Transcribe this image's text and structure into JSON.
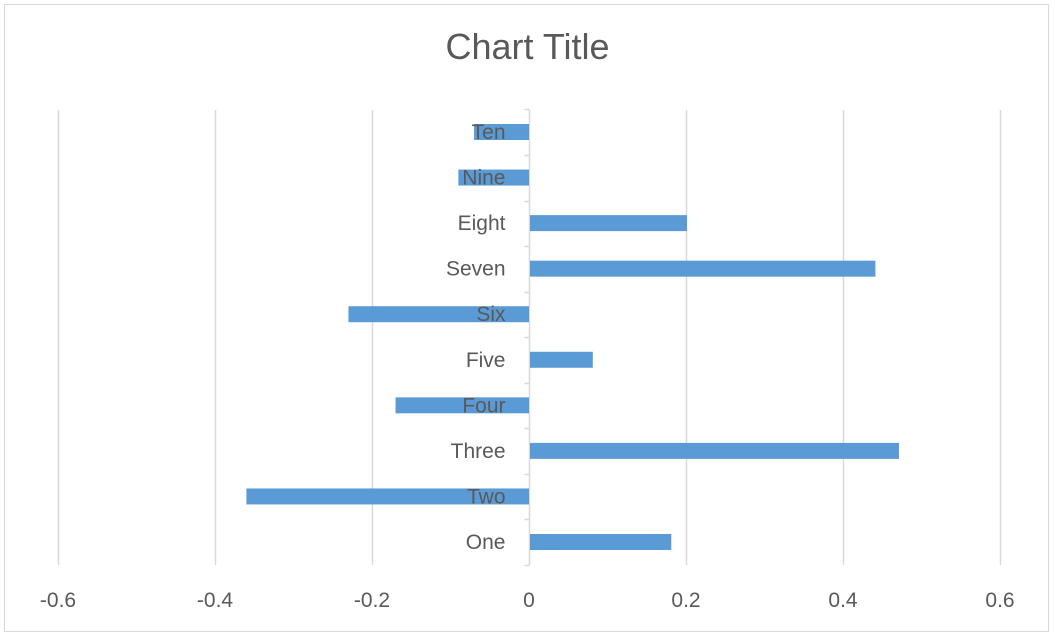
{
  "chart_data": {
    "type": "bar",
    "orientation": "horizontal",
    "title": "Chart Title",
    "categories": [
      "One",
      "Two",
      "Three",
      "Four",
      "Five",
      "Six",
      "Seven",
      "Eight",
      "Nine",
      "Ten"
    ],
    "values": [
      0.18,
      -0.36,
      0.47,
      -0.17,
      0.08,
      -0.23,
      0.44,
      0.2,
      -0.09,
      -0.07
    ],
    "xlim": [
      -0.6,
      0.6
    ],
    "xticks": [
      -0.6,
      -0.4,
      -0.2,
      0,
      0.2,
      0.4,
      0.6
    ],
    "xtick_labels": [
      "-0.6",
      "-0.4",
      "-0.2",
      "0",
      "0.2",
      "0.4",
      "0.6"
    ],
    "grid": true,
    "legend": "none",
    "bar_color": "#5b9bd5",
    "grid_color": "#d9d9d9",
    "text_color": "#595959"
  }
}
